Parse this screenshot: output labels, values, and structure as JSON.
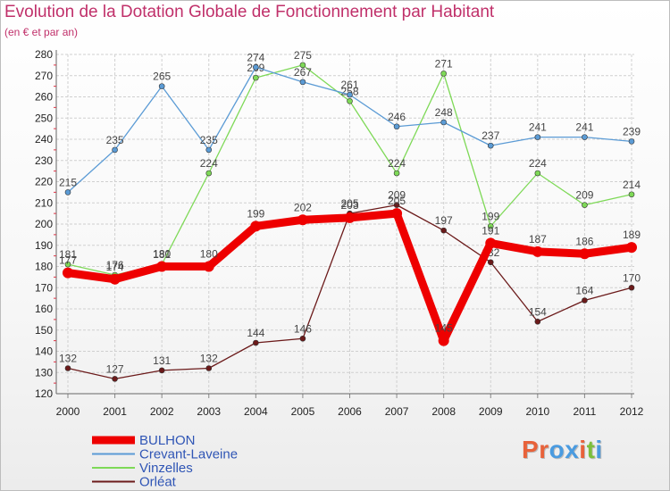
{
  "title": "Evolution de la Dotation Globale de Fonctionnement par Habitant",
  "subtitle": "(en € et par an)",
  "logo": "Proxiti",
  "colors": {
    "title": "#c0306a",
    "legend_text": "#2f55b5",
    "logo_letters": [
      "#e8623a",
      "#e8623a",
      "#4a9be0",
      "#4a9be0",
      "#e8623a",
      "#7cbf3c",
      "#4a9be0"
    ]
  },
  "chart_data": {
    "type": "line",
    "title": "Evolution de la Dotation Globale de Fonctionnement par Habitant",
    "ylabel": "(en € et par an)",
    "xlabel": "",
    "x": [
      "2000",
      "2001",
      "2002",
      "2003",
      "2004",
      "2005",
      "2006",
      "2007",
      "2008",
      "2009",
      "2010",
      "2011",
      "2012"
    ],
    "ylim": [
      120,
      280
    ],
    "ystep": 10,
    "grid": true,
    "legend_position": "bottom-left",
    "series": [
      {
        "name": "Orléat",
        "color": "#6b1a1a",
        "values": [
          132,
          127,
          131,
          132,
          144,
          146,
          205,
          209,
          197,
          182,
          154,
          164,
          170
        ]
      },
      {
        "name": "Vinzelles",
        "color": "#7ed957",
        "values": [
          181,
          176,
          181,
          224,
          269,
          275,
          258,
          224,
          271,
          199,
          224,
          209,
          214
        ]
      },
      {
        "name": "Crevant-Laveine",
        "color": "#5b9bd5",
        "values": [
          215,
          235,
          265,
          235,
          274,
          267,
          261,
          246,
          248,
          237,
          241,
          241,
          239
        ]
      },
      {
        "name": "BULHON",
        "color": "#ee0000",
        "values": [
          177,
          174,
          180,
          180,
          199,
          202,
          203,
          205,
          145,
          191,
          187,
          186,
          189
        ]
      }
    ],
    "legend_order": [
      "BULHON",
      "Crevant-Laveine",
      "Vinzelles",
      "Orléat"
    ]
  }
}
